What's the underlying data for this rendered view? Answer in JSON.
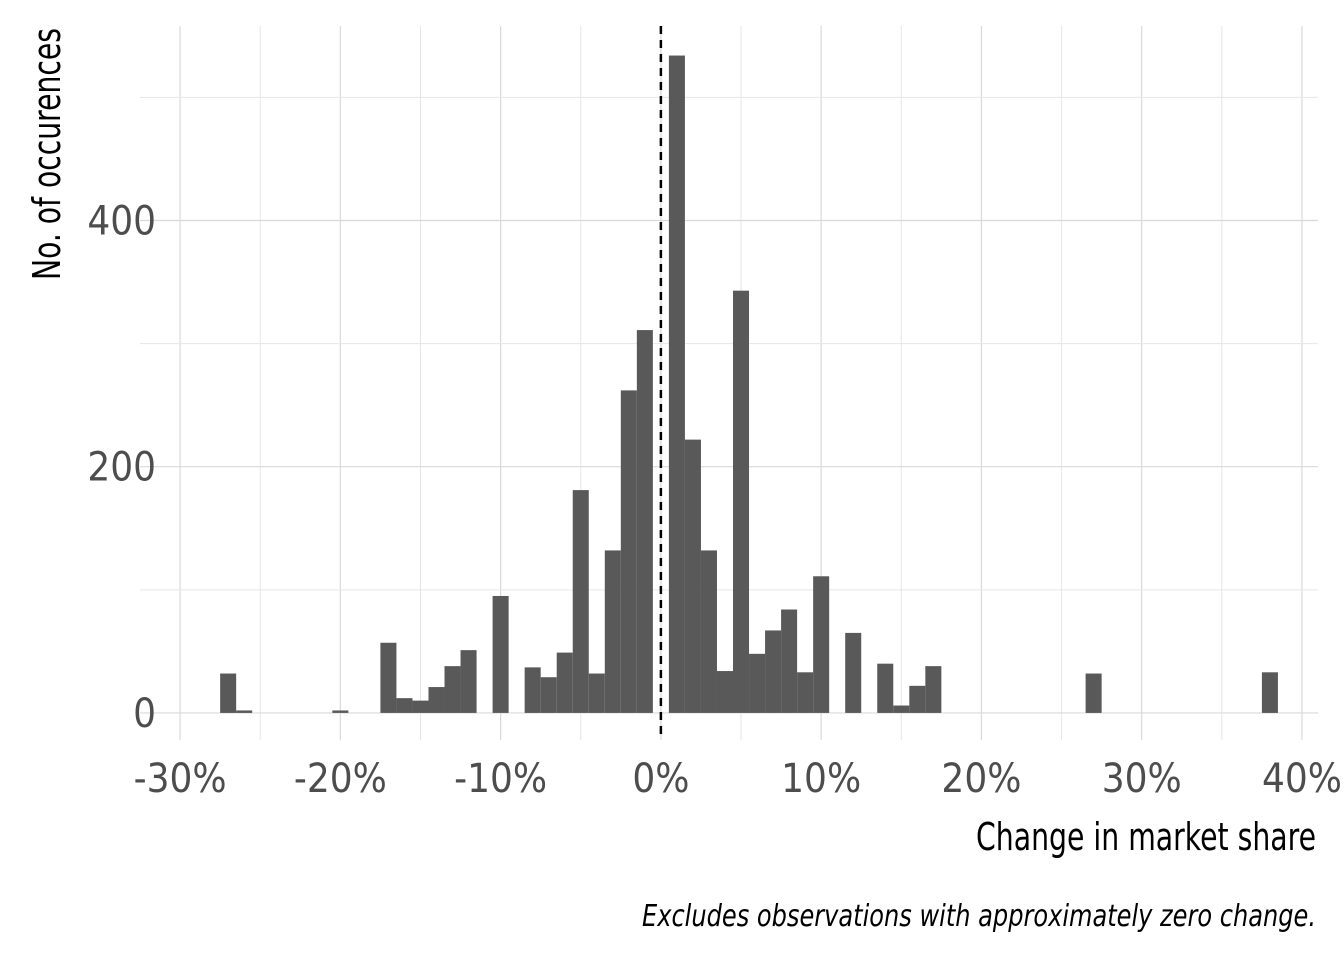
{
  "chart_data": {
    "type": "bar",
    "subtype": "histogram",
    "xlabel": "Change in market share",
    "ylabel": "No. of occurences",
    "caption": "Excludes observations with approximately zero change.",
    "xlim": [
      -32.5,
      41
    ],
    "ylim": [
      -22,
      558
    ],
    "x_ticks": [
      -30,
      -20,
      -10,
      0,
      10,
      20,
      30,
      40
    ],
    "x_tick_labels": [
      "-30%",
      "-20%",
      "-10%",
      "0%",
      "10%",
      "20%",
      "30%",
      "40%"
    ],
    "y_ticks": [
      0,
      200,
      400
    ],
    "y_tick_labels": [
      "0",
      "200",
      "400"
    ],
    "grid": true,
    "reference_line": {
      "x": 0,
      "style": "dashed"
    },
    "bar_color": "#595959",
    "bin_width": 1,
    "bins": [
      {
        "x": -27,
        "count": 32
      },
      {
        "x": -26,
        "count": 2
      },
      {
        "x": -20,
        "count": 2
      },
      {
        "x": -17,
        "count": 57
      },
      {
        "x": -16,
        "count": 12
      },
      {
        "x": -15,
        "count": 10
      },
      {
        "x": -14,
        "count": 21
      },
      {
        "x": -13,
        "count": 38
      },
      {
        "x": -12,
        "count": 51
      },
      {
        "x": -10,
        "count": 95
      },
      {
        "x": -8,
        "count": 37
      },
      {
        "x": -7,
        "count": 29
      },
      {
        "x": -6,
        "count": 49
      },
      {
        "x": -5,
        "count": 181
      },
      {
        "x": -4,
        "count": 32
      },
      {
        "x": -3,
        "count": 132
      },
      {
        "x": -2,
        "count": 262
      },
      {
        "x": -1,
        "count": 311
      },
      {
        "x": 1,
        "count": 534
      },
      {
        "x": 2,
        "count": 222
      },
      {
        "x": 3,
        "count": 132
      },
      {
        "x": 4,
        "count": 34
      },
      {
        "x": 5,
        "count": 343
      },
      {
        "x": 6,
        "count": 48
      },
      {
        "x": 7,
        "count": 67
      },
      {
        "x": 8,
        "count": 84
      },
      {
        "x": 9,
        "count": 33
      },
      {
        "x": 10,
        "count": 111
      },
      {
        "x": 12,
        "count": 65
      },
      {
        "x": 14,
        "count": 40
      },
      {
        "x": 15,
        "count": 6
      },
      {
        "x": 16,
        "count": 22
      },
      {
        "x": 17,
        "count": 38
      },
      {
        "x": 27,
        "count": 32
      },
      {
        "x": 38,
        "count": 33
      }
    ]
  }
}
